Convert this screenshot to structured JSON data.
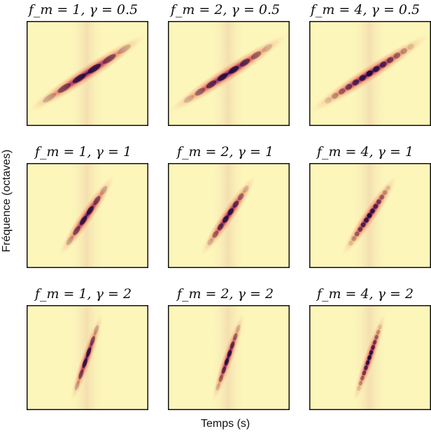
{
  "figure": {
    "xlabel": "Temps (s)",
    "ylabel": "Fréquence (octaves)",
    "colors": {
      "background": "#fcf6bb",
      "stripe": "#f3dcae",
      "low": "#f6a678",
      "mid": "#d65863",
      "high": "#7a2a80",
      "peak": "#1a0a35",
      "frame": "#111111"
    }
  },
  "chart_data": [
    {
      "type": "heatmap",
      "title": "f_m = 1, γ = 0.5",
      "fm": 1,
      "gamma": 0.5,
      "xlabel": "Temps (s)",
      "ylabel": "Fréquence (octaves)"
    },
    {
      "type": "heatmap",
      "title": "f_m = 2, γ = 0.5",
      "fm": 2,
      "gamma": 0.5,
      "xlabel": "Temps (s)",
      "ylabel": "Fréquence (octaves)"
    },
    {
      "type": "heatmap",
      "title": "f_m = 4, γ = 0.5",
      "fm": 4,
      "gamma": 0.5,
      "xlabel": "Temps (s)",
      "ylabel": "Fréquence (octaves)"
    },
    {
      "type": "heatmap",
      "title": "f_m = 1, γ = 1",
      "fm": 1,
      "gamma": 1,
      "xlabel": "Temps (s)",
      "ylabel": "Fréquence (octaves)"
    },
    {
      "type": "heatmap",
      "title": "f_m = 2, γ = 1",
      "fm": 2,
      "gamma": 1,
      "xlabel": "Temps (s)",
      "ylabel": "Fréquence (octaves)"
    },
    {
      "type": "heatmap",
      "title": "f_m = 4, γ = 1",
      "fm": 4,
      "gamma": 1,
      "xlabel": "Temps (s)",
      "ylabel": "Fréquence (octaves)"
    },
    {
      "type": "heatmap",
      "title": "f_m = 1, γ = 2",
      "fm": 1,
      "gamma": 2,
      "xlabel": "Temps (s)",
      "ylabel": "Fréquence (octaves)"
    },
    {
      "type": "heatmap",
      "title": "f_m = 2, γ = 2",
      "fm": 2,
      "gamma": 2,
      "xlabel": "Temps (s)",
      "ylabel": "Fréquence (octaves)"
    },
    {
      "type": "heatmap",
      "title": "f_m = 4, γ = 2",
      "fm": 4,
      "gamma": 2,
      "xlabel": "Temps (s)",
      "ylabel": "Fréquence (octaves)"
    }
  ]
}
